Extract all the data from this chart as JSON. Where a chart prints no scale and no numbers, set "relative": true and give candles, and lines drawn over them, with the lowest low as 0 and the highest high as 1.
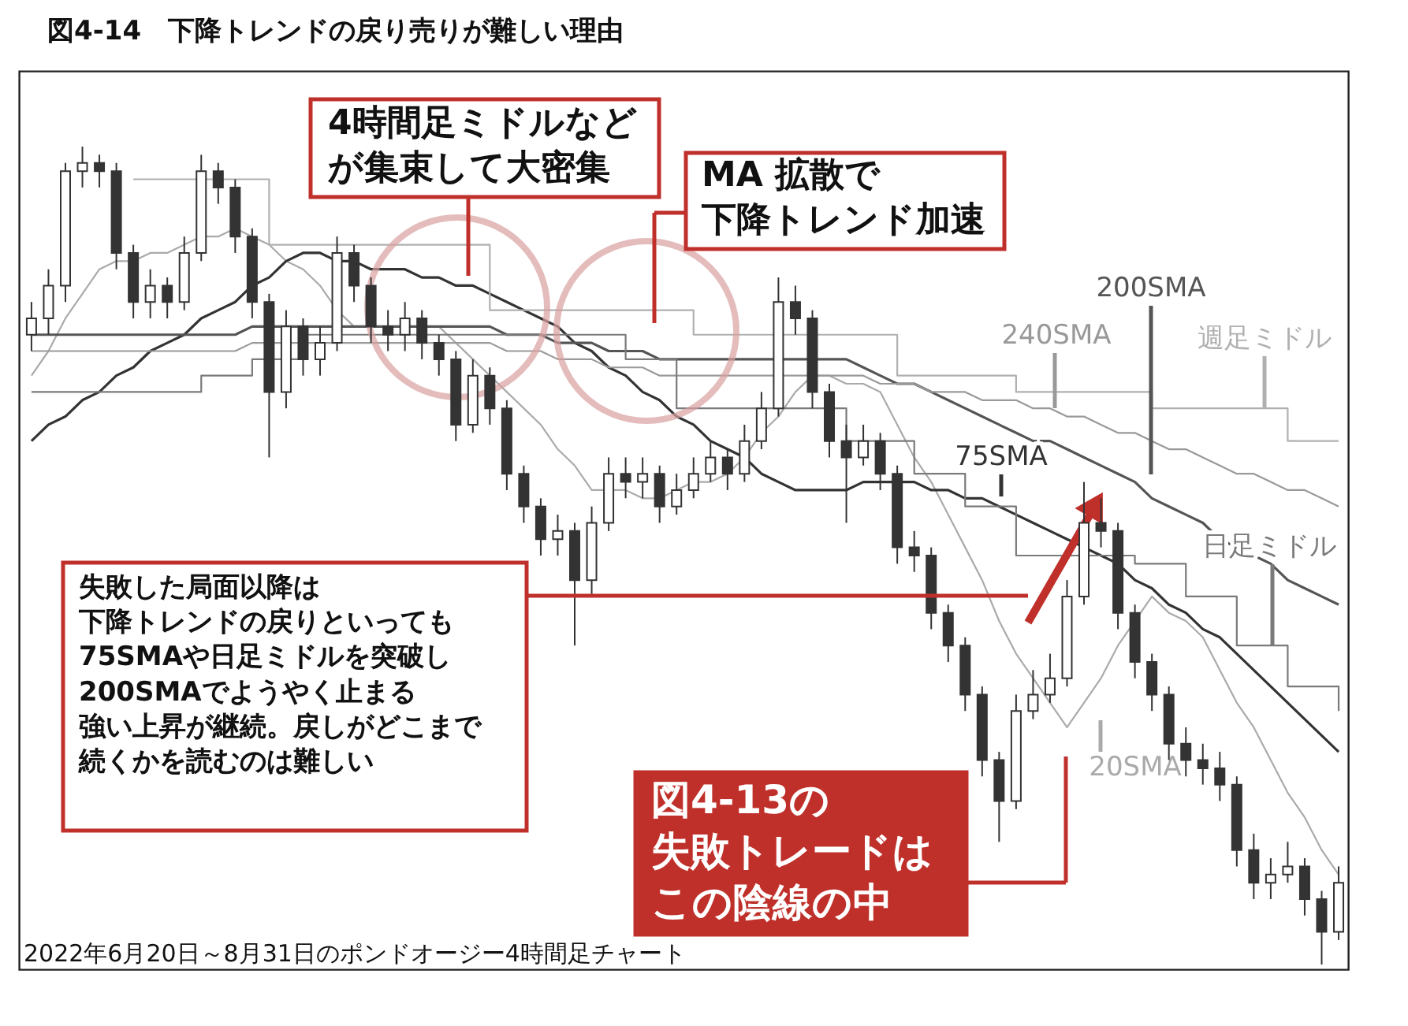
{
  "chart_data": {
    "type": "candlestick",
    "relative": true,
    "title": "図4-14　下降トレンドの戻り売りが難しい理由",
    "annotations": [
      "4時間足ミドルなどが集束して大密集",
      "MA 拡散で下降トレンド加速",
      "失敗した局面以降は下降トレンドの戻りといっても75SMAや日足ミドルを突破し200SMAでようやく止まる強い上昇が継続。戻しがどこまで続くかを読むのは難しい",
      "図4-13の失敗トレードはこの陰線の中",
      "2022年6月20日～8月31日のポンドオージー4時間足チャート"
    ],
    "categories": [
      null,
      null,
      null,
      null,
      null,
      null,
      null,
      null,
      null,
      null,
      null,
      null,
      null,
      null,
      null,
      null,
      null,
      null,
      null,
      null,
      null,
      null,
      null,
      null,
      null,
      null,
      null,
      null,
      null,
      null,
      null,
      null,
      null,
      null,
      null,
      null,
      null,
      null,
      null,
      null,
      null,
      null,
      null,
      null,
      null,
      null,
      null,
      null,
      null,
      null,
      null,
      null,
      null,
      null,
      null,
      null,
      null,
      null,
      null,
      null,
      null,
      null,
      null,
      null,
      null,
      null,
      null,
      null,
      null,
      null,
      null,
      null,
      null,
      null,
      null,
      null,
      null,
      null
    ],
    "ohlc": [
      [
        0.77,
        0.81,
        0.75,
        0.79
      ],
      [
        0.79,
        0.85,
        0.77,
        0.83
      ],
      [
        0.83,
        0.98,
        0.81,
        0.97
      ],
      [
        0.97,
        1.0,
        0.95,
        0.98
      ],
      [
        0.98,
        0.99,
        0.95,
        0.97
      ],
      [
        0.97,
        0.98,
        0.85,
        0.87
      ],
      [
        0.87,
        0.88,
        0.79,
        0.81
      ],
      [
        0.81,
        0.85,
        0.79,
        0.83
      ],
      [
        0.83,
        0.84,
        0.79,
        0.81
      ],
      [
        0.81,
        0.89,
        0.8,
        0.87
      ],
      [
        0.87,
        0.99,
        0.86,
        0.97
      ],
      [
        0.97,
        0.98,
        0.93,
        0.95
      ],
      [
        0.95,
        0.96,
        0.87,
        0.89
      ],
      [
        0.89,
        0.9,
        0.79,
        0.81
      ],
      [
        0.81,
        0.82,
        0.62,
        0.7
      ],
      [
        0.7,
        0.8,
        0.68,
        0.78
      ],
      [
        0.78,
        0.79,
        0.72,
        0.74
      ],
      [
        0.74,
        0.78,
        0.72,
        0.76
      ],
      [
        0.76,
        0.89,
        0.75,
        0.87
      ],
      [
        0.87,
        0.88,
        0.81,
        0.83
      ],
      [
        0.83,
        0.84,
        0.76,
        0.78
      ],
      [
        0.78,
        0.8,
        0.75,
        0.77
      ],
      [
        0.77,
        0.81,
        0.75,
        0.79
      ],
      [
        0.79,
        0.8,
        0.74,
        0.76
      ],
      [
        0.76,
        0.77,
        0.72,
        0.74
      ],
      [
        0.74,
        0.75,
        0.64,
        0.66
      ],
      [
        0.66,
        0.74,
        0.65,
        0.72
      ],
      [
        0.72,
        0.73,
        0.66,
        0.68
      ],
      [
        0.68,
        0.69,
        0.58,
        0.6
      ],
      [
        0.6,
        0.61,
        0.54,
        0.56
      ],
      [
        0.56,
        0.57,
        0.5,
        0.52
      ],
      [
        0.52,
        0.55,
        0.5,
        0.53
      ],
      [
        0.53,
        0.54,
        0.39,
        0.47
      ],
      [
        0.47,
        0.56,
        0.45,
        0.54
      ],
      [
        0.54,
        0.62,
        0.53,
        0.6
      ],
      [
        0.6,
        0.62,
        0.57,
        0.59
      ],
      [
        0.59,
        0.62,
        0.57,
        0.6
      ],
      [
        0.6,
        0.61,
        0.54,
        0.56
      ],
      [
        0.56,
        0.6,
        0.55,
        0.58
      ],
      [
        0.58,
        0.62,
        0.57,
        0.6
      ],
      [
        0.6,
        0.64,
        0.59,
        0.62
      ],
      [
        0.62,
        0.63,
        0.58,
        0.6
      ],
      [
        0.6,
        0.66,
        0.59,
        0.64
      ],
      [
        0.64,
        0.7,
        0.63,
        0.68
      ],
      [
        0.68,
        0.84,
        0.67,
        0.81
      ],
      [
        0.81,
        0.83,
        0.77,
        0.79
      ],
      [
        0.79,
        0.8,
        0.68,
        0.7
      ],
      [
        0.7,
        0.71,
        0.62,
        0.64
      ],
      [
        0.64,
        0.66,
        0.54,
        0.62
      ],
      [
        0.62,
        0.66,
        0.61,
        0.64
      ],
      [
        0.64,
        0.65,
        0.58,
        0.6
      ],
      [
        0.6,
        0.61,
        0.49,
        0.51
      ],
      [
        0.51,
        0.53,
        0.48,
        0.5
      ],
      [
        0.5,
        0.51,
        0.41,
        0.43
      ],
      [
        0.43,
        0.44,
        0.37,
        0.39
      ],
      [
        0.39,
        0.4,
        0.31,
        0.33
      ],
      [
        0.33,
        0.34,
        0.23,
        0.25
      ],
      [
        0.25,
        0.26,
        0.15,
        0.2
      ],
      [
        0.2,
        0.33,
        0.19,
        0.31
      ],
      [
        0.31,
        0.36,
        0.3,
        0.33
      ],
      [
        0.33,
        0.38,
        0.32,
        0.35
      ],
      [
        0.35,
        0.47,
        0.34,
        0.45
      ],
      [
        0.45,
        0.59,
        0.44,
        0.54
      ],
      [
        0.54,
        0.57,
        0.51,
        0.53
      ],
      [
        0.53,
        0.54,
        0.41,
        0.43
      ],
      [
        0.43,
        0.44,
        0.35,
        0.37
      ],
      [
        0.37,
        0.38,
        0.31,
        0.33
      ],
      [
        0.33,
        0.34,
        0.25,
        0.27
      ],
      [
        0.27,
        0.29,
        0.23,
        0.25
      ],
      [
        0.25,
        0.27,
        0.22,
        0.24
      ],
      [
        0.24,
        0.26,
        0.2,
        0.22
      ],
      [
        0.22,
        0.23,
        0.12,
        0.14
      ],
      [
        0.14,
        0.16,
        0.08,
        0.1
      ],
      [
        0.1,
        0.13,
        0.08,
        0.11
      ],
      [
        0.11,
        0.15,
        0.1,
        0.12
      ],
      [
        0.12,
        0.13,
        0.06,
        0.08
      ],
      [
        0.08,
        0.09,
        0.0,
        0.04
      ],
      [
        0.04,
        0.12,
        0.03,
        0.1
      ]
    ],
    "series": [
      {
        "name": "20SMA",
        "type": "line",
        "color": "#aaaaaa",
        "values": [
          0.72,
          0.75,
          0.79,
          0.82,
          0.85,
          0.86,
          0.86,
          0.87,
          0.87,
          0.88,
          0.89,
          0.89,
          0.9,
          0.89,
          0.88,
          0.86,
          0.85,
          0.83,
          0.8,
          0.78,
          0.78,
          0.78,
          0.78,
          0.78,
          0.78,
          0.76,
          0.74,
          0.72,
          0.7,
          0.68,
          0.66,
          0.63,
          0.61,
          0.58,
          0.58,
          0.58,
          0.57,
          0.57,
          0.58,
          0.59,
          0.59,
          0.6,
          0.62,
          0.65,
          0.67,
          0.7,
          0.72,
          0.72,
          0.71,
          0.71,
          0.7,
          0.66,
          0.62,
          0.59,
          0.55,
          0.51,
          0.47,
          0.42,
          0.38,
          0.35,
          0.32,
          0.29,
          0.32,
          0.35,
          0.39,
          0.42,
          0.45,
          0.43,
          0.42,
          0.4,
          0.36,
          0.32,
          0.29,
          0.25,
          0.21,
          0.18,
          0.14,
          0.11
        ]
      },
      {
        "name": "75SMA",
        "type": "line",
        "color": "#333333",
        "values": [
          0.64,
          0.66,
          0.67,
          0.69,
          0.7,
          0.72,
          0.73,
          0.75,
          0.76,
          0.77,
          0.79,
          0.8,
          0.81,
          0.83,
          0.84,
          0.86,
          0.87,
          0.87,
          0.86,
          0.86,
          0.85,
          0.85,
          0.85,
          0.84,
          0.84,
          0.83,
          0.83,
          0.82,
          0.81,
          0.8,
          0.79,
          0.78,
          0.76,
          0.75,
          0.73,
          0.72,
          0.7,
          0.69,
          0.67,
          0.66,
          0.64,
          0.63,
          0.62,
          0.6,
          0.59,
          0.58,
          0.58,
          0.58,
          0.58,
          0.59,
          0.59,
          0.59,
          0.59,
          0.58,
          0.58,
          0.57,
          0.57,
          0.56,
          0.55,
          0.54,
          0.53,
          0.52,
          0.51,
          0.5,
          0.49,
          0.47,
          0.46,
          0.44,
          0.43,
          0.41,
          0.4,
          0.38,
          0.36,
          0.34,
          0.32,
          0.3,
          0.28,
          0.26
        ]
      },
      {
        "name": "200SMA",
        "type": "line",
        "color": "#555555",
        "values": [
          0.77,
          0.77,
          0.77,
          0.77,
          0.77,
          0.77,
          0.77,
          0.77,
          0.77,
          0.77,
          0.77,
          0.77,
          0.77,
          0.78,
          0.78,
          0.78,
          0.78,
          0.78,
          0.78,
          0.78,
          0.78,
          0.78,
          0.78,
          0.78,
          0.78,
          0.78,
          0.78,
          0.78,
          0.77,
          0.77,
          0.77,
          0.76,
          0.76,
          0.76,
          0.75,
          0.75,
          0.75,
          0.74,
          0.74,
          0.74,
          0.74,
          0.74,
          0.74,
          0.74,
          0.74,
          0.74,
          0.74,
          0.74,
          0.74,
          0.73,
          0.72,
          0.71,
          0.71,
          0.7,
          0.69,
          0.68,
          0.67,
          0.66,
          0.65,
          0.64,
          0.64,
          0.63,
          0.62,
          0.61,
          0.6,
          0.59,
          0.57,
          0.56,
          0.55,
          0.54,
          0.52,
          0.51,
          0.5,
          0.49,
          0.47,
          0.46,
          0.45,
          0.44
        ]
      },
      {
        "name": "240SMA",
        "type": "line",
        "color": "#999999",
        "values": [
          0.75,
          0.75,
          0.75,
          0.75,
          0.75,
          0.75,
          0.75,
          0.75,
          0.75,
          0.75,
          0.75,
          0.75,
          0.75,
          0.76,
          0.76,
          0.76,
          0.76,
          0.76,
          0.76,
          0.76,
          0.76,
          0.76,
          0.76,
          0.76,
          0.76,
          0.76,
          0.76,
          0.76,
          0.75,
          0.75,
          0.75,
          0.74,
          0.74,
          0.74,
          0.73,
          0.73,
          0.73,
          0.72,
          0.72,
          0.72,
          0.72,
          0.72,
          0.72,
          0.72,
          0.72,
          0.72,
          0.72,
          0.72,
          0.72,
          0.72,
          0.71,
          0.71,
          0.71,
          0.7,
          0.7,
          0.7,
          0.69,
          0.69,
          0.69,
          0.68,
          0.68,
          0.67,
          0.67,
          0.66,
          0.65,
          0.65,
          0.64,
          0.63,
          0.63,
          0.62,
          0.61,
          0.6,
          0.6,
          0.59,
          0.58,
          0.58,
          0.57,
          0.56
        ]
      },
      {
        "name": "日足ミドル",
        "type": "step",
        "color": "#7a7a7a",
        "values": [
          0.7,
          0.7,
          0.7,
          0.7,
          0.7,
          0.7,
          0.7,
          0.7,
          0.7,
          0.7,
          0.72,
          0.72,
          0.72,
          0.74,
          0.74,
          0.74,
          0.77,
          0.77,
          0.77,
          0.77,
          0.77,
          0.77,
          0.77,
          0.77,
          0.77,
          0.77,
          0.77,
          0.77,
          0.77,
          0.77,
          0.77,
          0.77,
          0.77,
          0.77,
          0.77,
          0.74,
          0.74,
          0.74,
          0.68,
          0.68,
          0.68,
          0.68,
          0.68,
          0.68,
          0.68,
          0.68,
          0.68,
          0.68,
          0.64,
          0.64,
          0.64,
          0.64,
          0.6,
          0.6,
          0.6,
          0.56,
          0.56,
          0.56,
          0.5,
          0.5,
          0.5,
          0.5,
          0.5,
          0.5,
          0.5,
          0.49,
          0.49,
          0.49,
          0.45,
          0.45,
          0.45,
          0.39,
          0.39,
          0.39,
          0.34,
          0.34,
          0.34,
          0.31
        ]
      },
      {
        "name": "週足ミドル",
        "type": "step",
        "color": "#b0b0b0",
        "values": [
          null,
          null,
          null,
          null,
          null,
          null,
          0.96,
          0.96,
          0.96,
          0.96,
          0.96,
          0.96,
          0.96,
          0.96,
          0.88,
          0.88,
          0.88,
          0.88,
          0.88,
          0.88,
          0.88,
          0.88,
          0.88,
          0.88,
          0.88,
          0.88,
          0.88,
          0.8,
          0.8,
          0.8,
          0.8,
          0.8,
          0.8,
          0.8,
          0.8,
          0.8,
          0.8,
          0.8,
          0.8,
          0.77,
          0.77,
          0.77,
          0.77,
          0.77,
          0.77,
          0.77,
          0.77,
          0.77,
          0.77,
          0.77,
          0.77,
          0.72,
          0.72,
          0.72,
          0.72,
          0.72,
          0.72,
          0.72,
          0.7,
          0.7,
          0.7,
          0.7,
          0.7,
          0.7,
          0.7,
          0.7,
          0.68,
          0.68,
          0.68,
          0.68,
          0.68,
          0.68,
          0.68,
          0.68,
          0.64,
          0.64,
          0.64,
          0.64
        ]
      }
    ]
  }
}
